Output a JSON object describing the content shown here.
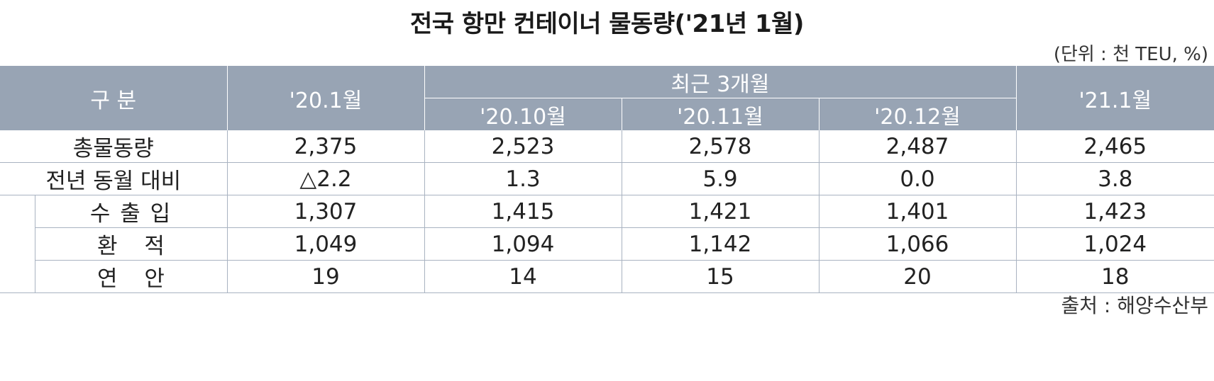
{
  "title": "전국 항만 컨테이너 물동량('21년 1월)",
  "unit": "(단위 : 천 TEU, %)",
  "table": {
    "header": {
      "category": "구 분",
      "jan20": "'20.1월",
      "recent_group": "최근 3개월",
      "oct20": "'20.10월",
      "nov20": "'20.11월",
      "dec20": "'20.12월",
      "jan21": "'21.1월"
    },
    "rows": [
      {
        "label": "총물동량",
        "values": [
          "2,375",
          "2,523",
          "2,578",
          "2,487",
          "2,465"
        ]
      },
      {
        "label": "전년 동월 대비",
        "values": [
          "△2.2",
          "1.3",
          "5.9",
          "0.0",
          "3.8"
        ]
      },
      {
        "label": "수 출 입",
        "values": [
          "1,307",
          "1,415",
          "1,421",
          "1,401",
          "1,423"
        ]
      },
      {
        "label": "환   적",
        "values": [
          "1,049",
          "1,094",
          "1,142",
          "1,066",
          "1,024"
        ]
      },
      {
        "label": "연   안",
        "values": [
          "19",
          "14",
          "15",
          "20",
          "18"
        ]
      }
    ]
  },
  "source": "출처 : 해양수산부"
}
